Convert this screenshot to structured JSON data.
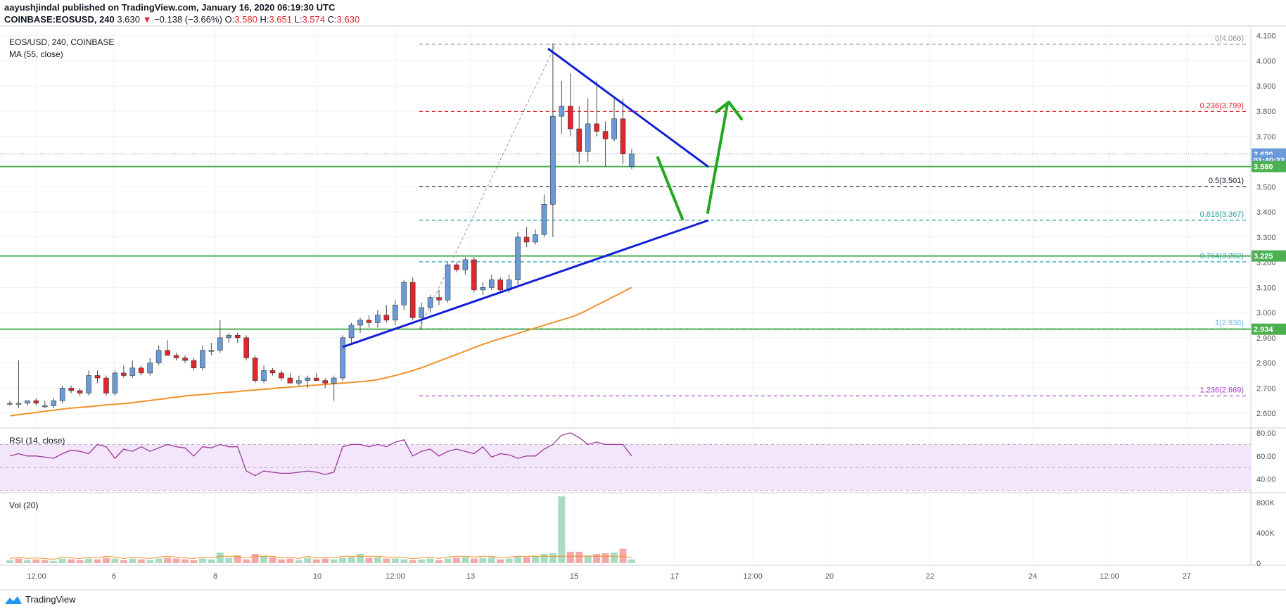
{
  "header": {
    "line1": "aayushjindal published on TradingView.com, January 16, 2020 06:19:30 UTC",
    "symbol": "COINBASE:EOSUSD, 240",
    "last": "3.630",
    "change": "−0.138 (−3.66%)",
    "o_label": "O:",
    "o": "3.580",
    "h_label": "H:",
    "h": "3.651",
    "l_label": "L:",
    "l": "3.574",
    "c_label": "C:",
    "c": "3.630"
  },
  "legend": {
    "title": "EOS/USD, 240, COINBASE",
    "ma": "MA (55, close)",
    "rsi": "RSI (14, close)",
    "vol": "Vol (20)"
  },
  "footer": {
    "brand": "TradingView"
  },
  "colors": {
    "up": "#6a9bd8",
    "down": "#e0262e",
    "ma": "#f0922c",
    "trendline": "#1420d8",
    "arrow": "#22a81e",
    "support": "#4caf50",
    "rsi": "#9c3a9c",
    "rsi_band": "#f3e5fa"
  },
  "chart_data": [
    {
      "type": "candlestick",
      "title": "EOS/USD, 240, COINBASE",
      "ylim": [
        2.55,
        4.13
      ],
      "y_ticks": [
        "4.100",
        "4.000",
        "3.900",
        "3.800",
        "3.700",
        "3.600",
        "3.500",
        "3.400",
        "3.300",
        "3.200",
        "3.100",
        "3.000",
        "2.900",
        "2.800",
        "2.700",
        "2.600"
      ],
      "x_ticks": [
        "12:00",
        "6",
        "8",
        "10",
        "12:00",
        "13",
        "15",
        "17",
        "12:00",
        "20",
        "22",
        "24",
        "12:00",
        "27"
      ],
      "candles": [
        [
          2.64,
          2.65,
          2.63,
          2.64
        ],
        [
          2.64,
          2.81,
          2.62,
          2.64
        ],
        [
          2.64,
          2.65,
          2.63,
          2.65
        ],
        [
          2.65,
          2.66,
          2.63,
          2.64
        ],
        [
          2.63,
          2.65,
          2.62,
          2.63
        ],
        [
          2.63,
          2.66,
          2.62,
          2.65
        ],
        [
          2.65,
          2.71,
          2.64,
          2.7
        ],
        [
          2.7,
          2.71,
          2.68,
          2.69
        ],
        [
          2.69,
          2.7,
          2.67,
          2.68
        ],
        [
          2.68,
          2.77,
          2.67,
          2.75
        ],
        [
          2.75,
          2.77,
          2.72,
          2.74
        ],
        [
          2.74,
          2.75,
          2.67,
          2.68
        ],
        [
          2.68,
          2.77,
          2.67,
          2.76
        ],
        [
          2.76,
          2.79,
          2.74,
          2.75
        ],
        [
          2.75,
          2.81,
          2.74,
          2.78
        ],
        [
          2.78,
          2.79,
          2.75,
          2.76
        ],
        [
          2.76,
          2.82,
          2.75,
          2.8
        ],
        [
          2.8,
          2.87,
          2.79,
          2.85
        ],
        [
          2.85,
          2.89,
          2.84,
          2.83
        ],
        [
          2.83,
          2.84,
          2.81,
          2.82
        ],
        [
          2.82,
          2.83,
          2.8,
          2.81
        ],
        [
          2.81,
          2.82,
          2.77,
          2.78
        ],
        [
          2.78,
          2.87,
          2.77,
          2.85
        ],
        [
          2.85,
          2.88,
          2.83,
          2.85
        ],
        [
          2.85,
          2.97,
          2.84,
          2.9
        ],
        [
          2.9,
          2.92,
          2.88,
          2.91
        ],
        [
          2.91,
          2.92,
          2.88,
          2.9
        ],
        [
          2.9,
          2.91,
          2.81,
          2.82
        ],
        [
          2.82,
          2.83,
          2.72,
          2.73
        ],
        [
          2.73,
          2.79,
          2.72,
          2.77
        ],
        [
          2.77,
          2.78,
          2.75,
          2.76
        ],
        [
          2.76,
          2.77,
          2.73,
          2.74
        ],
        [
          2.74,
          2.76,
          2.72,
          2.72
        ],
        [
          2.72,
          2.75,
          2.71,
          2.73
        ],
        [
          2.73,
          2.75,
          2.7,
          2.74
        ],
        [
          2.74,
          2.76,
          2.73,
          2.73
        ],
        [
          2.73,
          2.74,
          2.7,
          2.72
        ],
        [
          2.72,
          2.75,
          2.65,
          2.74
        ],
        [
          2.74,
          2.91,
          2.73,
          2.9
        ],
        [
          2.9,
          2.96,
          2.88,
          2.95
        ],
        [
          2.95,
          2.98,
          2.92,
          2.97
        ],
        [
          2.97,
          2.99,
          2.94,
          2.96
        ],
        [
          2.96,
          3.01,
          2.94,
          2.99
        ],
        [
          2.99,
          3.03,
          2.96,
          2.97
        ],
        [
          2.97,
          3.05,
          2.95,
          3.03
        ],
        [
          3.03,
          3.13,
          3.01,
          3.12
        ],
        [
          3.12,
          3.14,
          2.97,
          2.98
        ],
        [
          2.98,
          3.04,
          2.93,
          3.02
        ],
        [
          3.02,
          3.07,
          3.0,
          3.06
        ],
        [
          3.06,
          3.09,
          3.03,
          3.05
        ],
        [
          3.05,
          3.2,
          3.04,
          3.19
        ],
        [
          3.19,
          3.2,
          3.16,
          3.17
        ],
        [
          3.17,
          3.22,
          3.15,
          3.21
        ],
        [
          3.21,
          3.22,
          3.08,
          3.09
        ],
        [
          3.09,
          3.12,
          3.07,
          3.1
        ],
        [
          3.1,
          3.15,
          3.09,
          3.13
        ],
        [
          3.13,
          3.14,
          3.08,
          3.09
        ],
        [
          3.09,
          3.15,
          3.08,
          3.13
        ],
        [
          3.13,
          3.32,
          3.11,
          3.3
        ],
        [
          3.3,
          3.34,
          3.26,
          3.28
        ],
        [
          3.28,
          3.33,
          3.27,
          3.31
        ],
        [
          3.31,
          3.47,
          3.3,
          3.43
        ],
        [
          3.43,
          4.07,
          3.3,
          3.78
        ],
        [
          3.78,
          3.92,
          3.71,
          3.82
        ],
        [
          3.82,
          3.95,
          3.7,
          3.73
        ],
        [
          3.73,
          3.82,
          3.59,
          3.64
        ],
        [
          3.64,
          3.85,
          3.6,
          3.75
        ],
        [
          3.75,
          3.92,
          3.7,
          3.72
        ],
        [
          3.72,
          3.76,
          3.58,
          3.69
        ],
        [
          3.69,
          3.86,
          3.68,
          3.77
        ],
        [
          3.77,
          3.85,
          3.59,
          3.63
        ],
        [
          3.58,
          3.65,
          3.57,
          3.63
        ]
      ],
      "ma_55": [
        2.59,
        2.595,
        2.6,
        2.605,
        2.61,
        2.615,
        2.62,
        2.623,
        2.626,
        2.63,
        2.634,
        2.637,
        2.64,
        2.645,
        2.65,
        2.655,
        2.66,
        2.665,
        2.67,
        2.673,
        2.676,
        2.68,
        2.683,
        2.686,
        2.69,
        2.693,
        2.696,
        2.7,
        2.703,
        2.706,
        2.709,
        2.712,
        2.715,
        2.718,
        2.721,
        2.724,
        2.727,
        2.732,
        2.74,
        2.75,
        2.76,
        2.772,
        2.785,
        2.8,
        2.815,
        2.83,
        2.845,
        2.86,
        2.875,
        2.888,
        2.9,
        2.912,
        2.924,
        2.936,
        2.948,
        2.96,
        2.972,
        2.984,
        3.0,
        3.02,
        3.04,
        3.06,
        3.08,
        3.1
      ],
      "fib_levels": [
        {
          "label": "0(4.066)",
          "value": 4.066,
          "color": "#9598a1"
        },
        {
          "label": "0.236(3.799)",
          "value": 3.799,
          "color": "#e0262e"
        },
        {
          "label": "0.5(3.501)",
          "value": 3.501,
          "color": "#131722"
        },
        {
          "label": "0.618(3.367)",
          "value": 3.367,
          "color": "#26a69a"
        },
        {
          "label": "0.764(3.202)",
          "value": 3.202,
          "color": "#26a6c8"
        },
        {
          "label": "1(2.936)",
          "value": 2.936,
          "color": "#64b5f6"
        },
        {
          "label": "1.236(2.669)",
          "value": 2.669,
          "color": "#a040c0"
        }
      ],
      "horizontal_lines": [
        3.58,
        3.225,
        2.934
      ],
      "price_tags": [
        {
          "text": "3.630",
          "value": 3.63,
          "color": "#6a9bd8"
        },
        {
          "text": "01:40:33",
          "value": 3.605,
          "color": "#6a9bd8"
        },
        {
          "text": "3.580",
          "value": 3.58,
          "color": "#4caf50"
        },
        {
          "text": "3.225",
          "value": 3.225,
          "color": "#4caf50"
        },
        {
          "text": "2.934",
          "value": 2.934,
          "color": "#4caf50"
        }
      ]
    },
    {
      "type": "line",
      "title": "RSI (14, close)",
      "ylim": [
        30,
        80
      ],
      "y_ticks": [
        "80.00",
        "60.00",
        "40.00"
      ],
      "band": [
        30,
        70
      ],
      "values": [
        60,
        62,
        60,
        60,
        59,
        58,
        62,
        65,
        64,
        62,
        70,
        68,
        58,
        66,
        64,
        68,
        64,
        67,
        70,
        68,
        67,
        60,
        68,
        67,
        70,
        68,
        68,
        47,
        43,
        47,
        46,
        45,
        45,
        46,
        47,
        46,
        44,
        46,
        68,
        70,
        70,
        68,
        70,
        68,
        72,
        74,
        60,
        64,
        66,
        60,
        64,
        66,
        64,
        62,
        68,
        59,
        62,
        61,
        58,
        60,
        60,
        66,
        70,
        78,
        80,
        76,
        70,
        72,
        70,
        70,
        70,
        60
      ]
    },
    {
      "type": "bar",
      "title": "Vol (20)",
      "ylim": [
        0,
        900
      ],
      "y_ticks": [
        "800K",
        "400K",
        "0"
      ],
      "values": [
        40,
        60,
        40,
        50,
        40,
        30,
        60,
        50,
        40,
        60,
        50,
        70,
        60,
        40,
        60,
        50,
        40,
        60,
        70,
        60,
        50,
        40,
        60,
        50,
        140,
        70,
        100,
        50,
        120,
        100,
        80,
        50,
        60,
        40,
        70,
        50,
        60,
        50,
        70,
        80,
        120,
        70,
        80,
        60,
        60,
        50,
        40,
        50,
        60,
        40,
        60,
        70,
        80,
        60,
        70,
        80,
        50,
        60,
        90,
        80,
        100,
        120,
        130,
        880,
        150,
        150,
        100,
        120,
        130,
        140,
        190,
        50
      ],
      "up_flags": [
        1,
        0,
        1,
        0,
        0,
        1,
        1,
        0,
        0,
        1,
        0,
        0,
        1,
        0,
        1,
        0,
        1,
        1,
        0,
        0,
        0,
        0,
        1,
        1,
        1,
        1,
        0,
        0,
        0,
        1,
        0,
        0,
        0,
        1,
        1,
        0,
        0,
        1,
        1,
        1,
        1,
        0,
        1,
        0,
        1,
        1,
        0,
        1,
        1,
        0,
        1,
        0,
        1,
        0,
        1,
        1,
        0,
        1,
        1,
        0,
        1,
        1,
        1,
        1,
        0,
        0,
        1,
        0,
        0,
        1,
        0,
        1
      ]
    }
  ]
}
